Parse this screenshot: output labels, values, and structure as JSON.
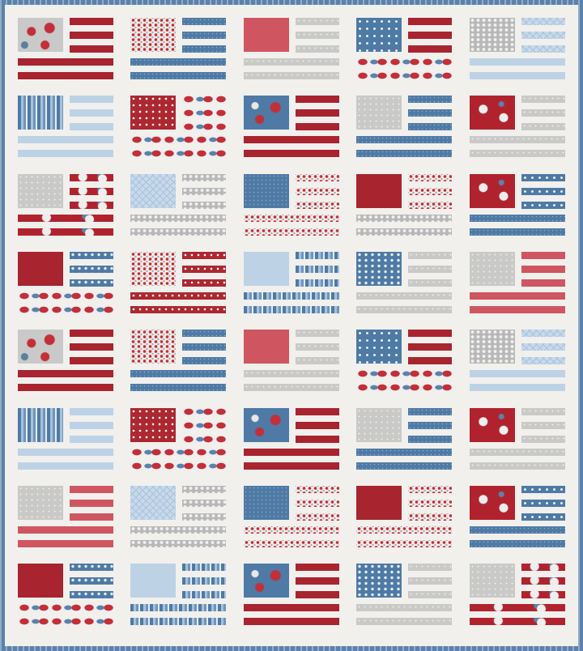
{
  "colors": {
    "border": "#5a82ab",
    "background": "#f1f0ed",
    "red": "#a8242f",
    "blue": "#4e7aa5",
    "light_blue": "#bdd2e5",
    "gray": "#c9c9c8",
    "pink_red": "#cf5660"
  },
  "rows": [
    [
      [
        "floral-gray",
        "red",
        "red"
      ],
      [
        "floral-white",
        "blue",
        "blue"
      ],
      [
        "pink",
        "gray",
        "gray"
      ],
      [
        "blue-stars",
        "red",
        "floral-wide"
      ],
      [
        "gray-floral",
        "lblue-x",
        "lblue"
      ]
    ],
    [
      [
        "blue-stripe",
        "lblue",
        "lblue"
      ],
      [
        "red-dots",
        "floral-wide",
        "floral-wide"
      ],
      [
        "floral-blue",
        "red",
        "red"
      ],
      [
        "gray",
        "blue",
        "blue"
      ],
      [
        "floral-red",
        "gray",
        "gray"
      ]
    ],
    [
      [
        "gray",
        "floral-red",
        "floral-red"
      ],
      [
        "lblue-x",
        "gray-floral",
        "gray-floral"
      ],
      [
        "blue",
        "floral-white",
        "floral-white"
      ],
      [
        "red",
        "floral-white",
        "gray-floral"
      ],
      [
        "floral-red",
        "blue-stars",
        "blue"
      ]
    ],
    [
      [
        "red",
        "floral-bluesm",
        "floral-wide"
      ],
      [
        "floral-white",
        "red-dots",
        "red-dots"
      ],
      [
        "lblue",
        "blue-stripe",
        "blue-stripe"
      ],
      [
        "floral-bluesm",
        "gray",
        "gray"
      ],
      [
        "gray",
        "pink",
        "pink"
      ]
    ],
    [
      [
        "floral-gray",
        "red",
        "red"
      ],
      [
        "floral-white",
        "blue",
        "blue"
      ],
      [
        "pink",
        "gray",
        "gray"
      ],
      [
        "blue-stars",
        "red",
        "floral-wide"
      ],
      [
        "gray-floral",
        "lblue-x",
        "lblue"
      ]
    ],
    [
      [
        "blue-stripe",
        "lblue",
        "lblue"
      ],
      [
        "red-dots",
        "floral-wide",
        "floral-wide"
      ],
      [
        "floral-blue",
        "red",
        "red"
      ],
      [
        "gray",
        "blue",
        "blue"
      ],
      [
        "floral-red",
        "gray",
        "gray"
      ]
    ],
    [
      [
        "gray",
        "pink",
        "pink"
      ],
      [
        "lblue-x",
        "gray-floral",
        "gray-floral"
      ],
      [
        "blue",
        "floral-white",
        "floral-white"
      ],
      [
        "red",
        "floral-white",
        "floral-white"
      ],
      [
        "floral-red",
        "blue-stars",
        "blue"
      ]
    ],
    [
      [
        "red",
        "floral-bluesm",
        "floral-wide"
      ],
      [
        "lblue",
        "blue-stripe",
        "blue-stripe"
      ],
      [
        "floral-blue",
        "red",
        "red"
      ],
      [
        "floral-bluesm",
        "gray",
        "gray"
      ],
      [
        "gray",
        "floral-red",
        "floral-red"
      ]
    ]
  ]
}
